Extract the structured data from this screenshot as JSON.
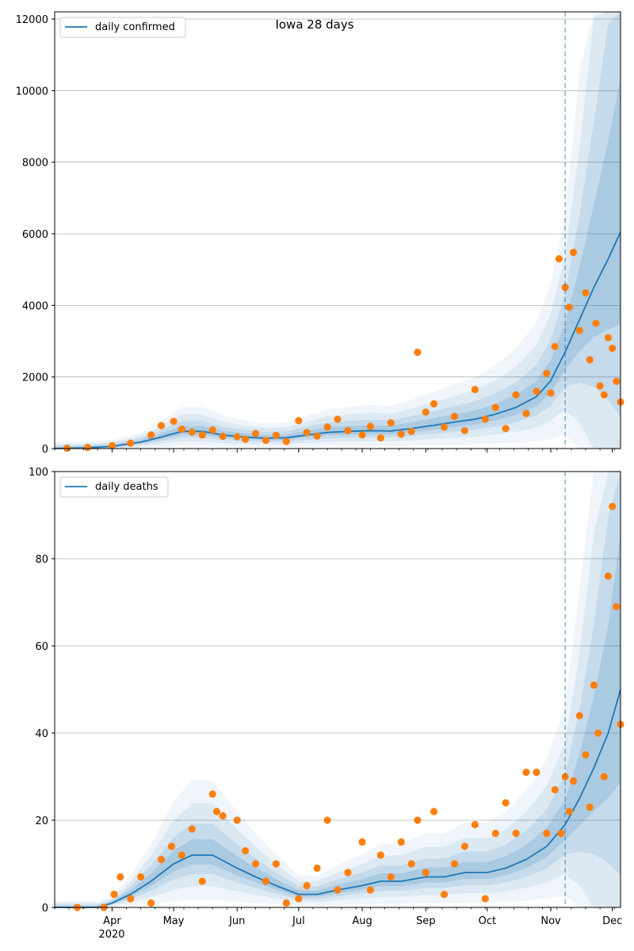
{
  "title": "Iowa 28 days",
  "x_axis": {
    "ticks": [
      "Apr",
      "May",
      "Jun",
      "Jul",
      "Aug",
      "Sep",
      "Oct",
      "Nov",
      "Dec"
    ],
    "year_label": "2020"
  },
  "colors": {
    "line": "#1f77b4",
    "points": "#ff7f0e",
    "band": "#1f77b4",
    "vline": "#1f77b4",
    "grid": "#b0b0b0"
  },
  "chart_data": [
    {
      "type": "line",
      "title": "Iowa 28 days",
      "legend": [
        "daily confirmed"
      ],
      "legend_position": "top-left",
      "ylim": [
        0,
        12200
      ],
      "yticks": [
        0,
        2000,
        4000,
        6000,
        8000,
        10000,
        12000
      ],
      "grid": true,
      "forecast_start": "2020-11-08",
      "x_start": "2020-03-04",
      "x_end": "2020-12-05",
      "series": [
        {
          "name": "daily confirmed",
          "kind": "model_median",
          "points": [
            [
              "2020-03-04",
              0
            ],
            [
              "2020-03-20",
              20
            ],
            [
              "2020-04-01",
              60
            ],
            [
              "2020-04-15",
              180
            ],
            [
              "2020-04-25",
              320
            ],
            [
              "2020-05-05",
              480
            ],
            [
              "2020-05-15",
              480
            ],
            [
              "2020-05-25",
              380
            ],
            [
              "2020-06-05",
              320
            ],
            [
              "2020-06-15",
              290
            ],
            [
              "2020-06-25",
              300
            ],
            [
              "2020-07-05",
              380
            ],
            [
              "2020-07-15",
              450
            ],
            [
              "2020-07-25",
              480
            ],
            [
              "2020-08-05",
              500
            ],
            [
              "2020-08-15",
              490
            ],
            [
              "2020-08-25",
              560
            ],
            [
              "2020-09-05",
              650
            ],
            [
              "2020-09-15",
              740
            ],
            [
              "2020-09-25",
              820
            ],
            [
              "2020-10-05",
              960
            ],
            [
              "2020-10-15",
              1150
            ],
            [
              "2020-10-25",
              1450
            ],
            [
              "2020-11-01",
              1900
            ],
            [
              "2020-11-08",
              2700
            ],
            [
              "2020-11-15",
              3600
            ],
            [
              "2020-11-22",
              4500
            ],
            [
              "2020-11-29",
              5300
            ],
            [
              "2020-12-05",
              6050
            ]
          ]
        },
        {
          "name": "",
          "kind": "observed",
          "points": [
            [
              "2020-03-10",
              10
            ],
            [
              "2020-03-20",
              30
            ],
            [
              "2020-04-01",
              80
            ],
            [
              "2020-04-10",
              150
            ],
            [
              "2020-04-20",
              380
            ],
            [
              "2020-04-25",
              640
            ],
            [
              "2020-05-01",
              760
            ],
            [
              "2020-05-05",
              540
            ],
            [
              "2020-05-10",
              460
            ],
            [
              "2020-05-15",
              380
            ],
            [
              "2020-05-20",
              520
            ],
            [
              "2020-05-25",
              340
            ],
            [
              "2020-06-01",
              330
            ],
            [
              "2020-06-05",
              260
            ],
            [
              "2020-06-10",
              420
            ],
            [
              "2020-06-15",
              230
            ],
            [
              "2020-06-20",
              370
            ],
            [
              "2020-06-25",
              200
            ],
            [
              "2020-07-01",
              780
            ],
            [
              "2020-07-05",
              450
            ],
            [
              "2020-07-10",
              350
            ],
            [
              "2020-07-15",
              600
            ],
            [
              "2020-07-20",
              820
            ],
            [
              "2020-07-25",
              500
            ],
            [
              "2020-08-01",
              380
            ],
            [
              "2020-08-05",
              620
            ],
            [
              "2020-08-10",
              300
            ],
            [
              "2020-08-15",
              720
            ],
            [
              "2020-08-20",
              400
            ],
            [
              "2020-08-25",
              480
            ],
            [
              "2020-08-28",
              2690
            ],
            [
              "2020-09-01",
              1020
            ],
            [
              "2020-09-05",
              1250
            ],
            [
              "2020-09-10",
              600
            ],
            [
              "2020-09-15",
              900
            ],
            [
              "2020-09-20",
              500
            ],
            [
              "2020-09-25",
              1650
            ],
            [
              "2020-09-30",
              820
            ],
            [
              "2020-10-05",
              1150
            ],
            [
              "2020-10-10",
              560
            ],
            [
              "2020-10-15",
              1500
            ],
            [
              "2020-10-20",
              980
            ],
            [
              "2020-10-25",
              1600
            ],
            [
              "2020-10-30",
              2100
            ],
            [
              "2020-11-01",
              1550
            ],
            [
              "2020-11-03",
              2850
            ],
            [
              "2020-11-05",
              5300
            ],
            [
              "2020-11-08",
              4500
            ],
            [
              "2020-11-10",
              3950
            ],
            [
              "2020-11-12",
              5480
            ],
            [
              "2020-11-15",
              3300
            ],
            [
              "2020-11-18",
              4350
            ],
            [
              "2020-11-20",
              2480
            ],
            [
              "2020-11-23",
              3500
            ],
            [
              "2020-11-25",
              1750
            ],
            [
              "2020-11-27",
              1500
            ],
            [
              "2020-11-29",
              3100
            ],
            [
              "2020-12-01",
              2800
            ],
            [
              "2020-12-03",
              1880
            ],
            [
              "2020-12-05",
              1300
            ]
          ]
        }
      ]
    },
    {
      "type": "line",
      "title": "",
      "legend": [
        "daily deaths"
      ],
      "legend_position": "top-left",
      "ylim": [
        0,
        100
      ],
      "yticks": [
        0,
        20,
        40,
        60,
        80,
        100
      ],
      "grid": true,
      "forecast_start": "2020-11-08",
      "x_start": "2020-03-04",
      "x_end": "2020-12-05",
      "series": [
        {
          "name": "daily deaths",
          "kind": "model_median",
          "points": [
            [
              "2020-03-04",
              0
            ],
            [
              "2020-03-25",
              0
            ],
            [
              "2020-04-01",
              1
            ],
            [
              "2020-04-10",
              3
            ],
            [
              "2020-04-20",
              6
            ],
            [
              "2020-05-01",
              10
            ],
            [
              "2020-05-10",
              12
            ],
            [
              "2020-05-20",
              12
            ],
            [
              "2020-06-01",
              9
            ],
            [
              "2020-06-10",
              7
            ],
            [
              "2020-06-20",
              5
            ],
            [
              "2020-07-01",
              3
            ],
            [
              "2020-07-10",
              3
            ],
            [
              "2020-07-20",
              4
            ],
            [
              "2020-08-01",
              5
            ],
            [
              "2020-08-10",
              6
            ],
            [
              "2020-08-20",
              6
            ],
            [
              "2020-09-01",
              7
            ],
            [
              "2020-09-10",
              7
            ],
            [
              "2020-09-20",
              8
            ],
            [
              "2020-10-01",
              8
            ],
            [
              "2020-10-10",
              9
            ],
            [
              "2020-10-20",
              11
            ],
            [
              "2020-10-30",
              14
            ],
            [
              "2020-11-08",
              19
            ],
            [
              "2020-11-15",
              25
            ],
            [
              "2020-11-22",
              32
            ],
            [
              "2020-11-29",
              40
            ],
            [
              "2020-12-05",
              50
            ]
          ]
        },
        {
          "name": "",
          "kind": "observed",
          "points": [
            [
              "2020-03-15",
              0
            ],
            [
              "2020-03-28",
              0
            ],
            [
              "2020-04-02",
              3
            ],
            [
              "2020-04-05",
              7
            ],
            [
              "2020-04-10",
              2
            ],
            [
              "2020-04-15",
              7
            ],
            [
              "2020-04-20",
              1
            ],
            [
              "2020-04-25",
              11
            ],
            [
              "2020-04-30",
              14
            ],
            [
              "2020-05-05",
              12
            ],
            [
              "2020-05-10",
              18
            ],
            [
              "2020-05-15",
              6
            ],
            [
              "2020-05-20",
              26
            ],
            [
              "2020-05-22",
              22
            ],
            [
              "2020-05-25",
              21
            ],
            [
              "2020-06-01",
              20
            ],
            [
              "2020-06-05",
              13
            ],
            [
              "2020-06-10",
              10
            ],
            [
              "2020-06-15",
              6
            ],
            [
              "2020-06-20",
              10
            ],
            [
              "2020-06-25",
              1
            ],
            [
              "2020-07-01",
              2
            ],
            [
              "2020-07-05",
              5
            ],
            [
              "2020-07-10",
              9
            ],
            [
              "2020-07-15",
              20
            ],
            [
              "2020-07-20",
              4
            ],
            [
              "2020-07-25",
              8
            ],
            [
              "2020-08-01",
              15
            ],
            [
              "2020-08-05",
              4
            ],
            [
              "2020-08-10",
              12
            ],
            [
              "2020-08-15",
              7
            ],
            [
              "2020-08-20",
              15
            ],
            [
              "2020-08-25",
              10
            ],
            [
              "2020-08-28",
              20
            ],
            [
              "2020-09-01",
              8
            ],
            [
              "2020-09-05",
              22
            ],
            [
              "2020-09-10",
              3
            ],
            [
              "2020-09-15",
              10
            ],
            [
              "2020-09-20",
              14
            ],
            [
              "2020-09-25",
              19
            ],
            [
              "2020-09-30",
              2
            ],
            [
              "2020-10-05",
              17
            ],
            [
              "2020-10-10",
              24
            ],
            [
              "2020-10-15",
              17
            ],
            [
              "2020-10-20",
              31
            ],
            [
              "2020-10-25",
              31
            ],
            [
              "2020-10-30",
              17
            ],
            [
              "2020-11-03",
              27
            ],
            [
              "2020-11-06",
              17
            ],
            [
              "2020-11-08",
              30
            ],
            [
              "2020-11-10",
              22
            ],
            [
              "2020-11-12",
              29
            ],
            [
              "2020-11-15",
              44
            ],
            [
              "2020-11-18",
              35
            ],
            [
              "2020-11-20",
              23
            ],
            [
              "2020-11-22",
              51
            ],
            [
              "2020-11-24",
              40
            ],
            [
              "2020-11-27",
              30
            ],
            [
              "2020-11-29",
              76
            ],
            [
              "2020-12-01",
              92
            ],
            [
              "2020-12-03",
              69
            ],
            [
              "2020-12-05",
              42
            ]
          ]
        }
      ]
    }
  ]
}
